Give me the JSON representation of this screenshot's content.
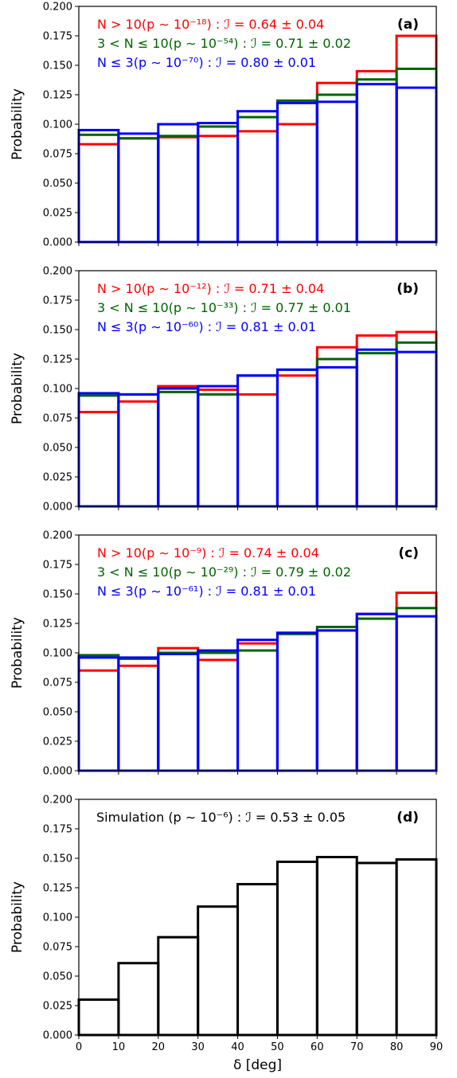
{
  "chart_data": [
    {
      "type": "bar",
      "histtype": "step",
      "panel_label": "(a)",
      "ylabel": "Probability",
      "xlabel": "",
      "xlim": [
        0,
        90
      ],
      "ylim": [
        0,
        0.2
      ],
      "x_ticks": [
        "0",
        "10",
        "20",
        "30",
        "40",
        "50",
        "60",
        "70",
        "80",
        "90"
      ],
      "x_tick_labels_shown": false,
      "y_ticks": [
        "0.000",
        "0.025",
        "0.050",
        "0.075",
        "0.100",
        "0.125",
        "0.150",
        "0.175",
        "0.200"
      ],
      "bin_edges": [
        0,
        10,
        20,
        30,
        40,
        50,
        60,
        70,
        80,
        90
      ],
      "series": [
        {
          "label": "N > 10(p ∼ 10⁻¹⁸) : ℐ = 0.64 ± 0.04",
          "color": "#ff0000",
          "values": [
            0.083,
            0.088,
            0.089,
            0.09,
            0.094,
            0.1,
            0.135,
            0.145,
            0.175
          ]
        },
        {
          "label": "3 < N ≤ 10(p ∼ 10⁻⁵⁴) : ℐ = 0.71 ± 0.02",
          "color": "#006400",
          "values": [
            0.091,
            0.088,
            0.09,
            0.098,
            0.106,
            0.12,
            0.125,
            0.138,
            0.147
          ]
        },
        {
          "label": "N ≤ 3(p ∼ 10⁻⁷⁰) : ℐ = 0.80 ± 0.01",
          "color": "#0000ff",
          "values": [
            0.095,
            0.092,
            0.1,
            0.101,
            0.111,
            0.118,
            0.119,
            0.134,
            0.131
          ]
        }
      ]
    },
    {
      "type": "bar",
      "histtype": "step",
      "panel_label": "(b)",
      "ylabel": "Probability",
      "xlabel": "",
      "xlim": [
        0,
        90
      ],
      "ylim": [
        0,
        0.2
      ],
      "x_ticks": [
        "0",
        "10",
        "20",
        "30",
        "40",
        "50",
        "60",
        "70",
        "80",
        "90"
      ],
      "x_tick_labels_shown": false,
      "y_ticks": [
        "0.000",
        "0.025",
        "0.050",
        "0.075",
        "0.100",
        "0.125",
        "0.150",
        "0.175",
        "0.200"
      ],
      "bin_edges": [
        0,
        10,
        20,
        30,
        40,
        50,
        60,
        70,
        80,
        90
      ],
      "series": [
        {
          "label": "N > 10(p ∼ 10⁻¹²) : ℐ = 0.71 ± 0.04",
          "color": "#ff0000",
          "values": [
            0.08,
            0.089,
            0.102,
            0.099,
            0.095,
            0.111,
            0.135,
            0.145,
            0.148
          ]
        },
        {
          "label": "3 < N ≤ 10(p ∼ 10⁻³³) : ℐ = 0.77 ± 0.01",
          "color": "#006400",
          "values": [
            0.094,
            0.095,
            0.097,
            0.095,
            0.111,
            0.116,
            0.125,
            0.13,
            0.139
          ]
        },
        {
          "label": "N ≤ 3(p ∼ 10⁻⁶⁰) : ℐ = 0.81 ± 0.01",
          "color": "#0000ff",
          "values": [
            0.096,
            0.095,
            0.1,
            0.102,
            0.111,
            0.116,
            0.118,
            0.133,
            0.131
          ]
        }
      ]
    },
    {
      "type": "bar",
      "histtype": "step",
      "panel_label": "(c)",
      "ylabel": "Probability",
      "xlabel": "",
      "xlim": [
        0,
        90
      ],
      "ylim": [
        0,
        0.2
      ],
      "x_ticks": [
        "0",
        "10",
        "20",
        "30",
        "40",
        "50",
        "60",
        "70",
        "80",
        "90"
      ],
      "x_tick_labels_shown": false,
      "y_ticks": [
        "0.000",
        "0.025",
        "0.050",
        "0.075",
        "0.100",
        "0.125",
        "0.150",
        "0.175",
        "0.200"
      ],
      "bin_edges": [
        0,
        10,
        20,
        30,
        40,
        50,
        60,
        70,
        80,
        90
      ],
      "series": [
        {
          "label": "N > 10(p ∼ 10⁻⁹) : ℐ = 0.74 ± 0.04",
          "color": "#ff0000",
          "values": [
            0.085,
            0.089,
            0.104,
            0.094,
            0.108,
            0.117,
            0.119,
            0.133,
            0.151
          ]
        },
        {
          "label": "3 < N ≤ 10(p ∼ 10⁻²⁹) : ℐ = 0.79 ± 0.02",
          "color": "#006400",
          "values": [
            0.098,
            0.095,
            0.1,
            0.1,
            0.102,
            0.116,
            0.122,
            0.129,
            0.138
          ]
        },
        {
          "label": "N ≤ 3(p ∼ 10⁻⁶¹) : ℐ = 0.81 ± 0.01",
          "color": "#0000ff",
          "values": [
            0.096,
            0.096,
            0.099,
            0.102,
            0.111,
            0.117,
            0.119,
            0.133,
            0.131
          ]
        }
      ]
    },
    {
      "type": "bar",
      "histtype": "step",
      "panel_label": "(d)",
      "ylabel": "Probability",
      "xlabel": "δ [deg]",
      "xlim": [
        0,
        90
      ],
      "ylim": [
        0,
        0.2
      ],
      "x_ticks": [
        "0",
        "10",
        "20",
        "30",
        "40",
        "50",
        "60",
        "70",
        "80",
        "90"
      ],
      "x_tick_labels_shown": true,
      "y_ticks": [
        "0.000",
        "0.025",
        "0.050",
        "0.075",
        "0.100",
        "0.125",
        "0.150",
        "0.175",
        "0.200"
      ],
      "bin_edges": [
        0,
        10,
        20,
        30,
        40,
        50,
        60,
        70,
        80,
        90
      ],
      "series": [
        {
          "label": "Simulation (p ∼ 10⁻⁶) : ℐ = 0.53 ± 0.05",
          "color": "#000000",
          "values": [
            0.03,
            0.061,
            0.083,
            0.109,
            0.128,
            0.147,
            0.151,
            0.146,
            0.149
          ]
        }
      ]
    }
  ]
}
